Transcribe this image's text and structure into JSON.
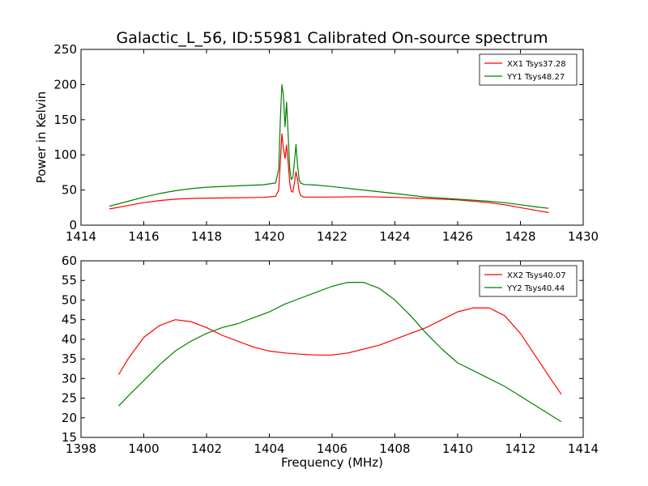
{
  "chart_data": [
    {
      "type": "line",
      "title": "Galactic_L_56, ID:55981 Calibrated On-source spectrum",
      "xlabel": "",
      "ylabel": "Power in Kelvin",
      "xlim": [
        1414,
        1430
      ],
      "ylim": [
        0,
        250
      ],
      "xticks": [
        1414,
        1416,
        1418,
        1420,
        1422,
        1424,
        1426,
        1428,
        1430
      ],
      "yticks": [
        0,
        50,
        100,
        150,
        200,
        250
      ],
      "grid": false,
      "legend": "top-right",
      "series": [
        {
          "name": "XX1 Tsys37.28",
          "color": "#ff0000",
          "x": [
            1414.9,
            1415.5,
            1416.0,
            1416.5,
            1417.0,
            1417.5,
            1418.0,
            1419.0,
            1419.8,
            1420.2,
            1420.3,
            1420.35,
            1420.4,
            1420.45,
            1420.5,
            1420.55,
            1420.6,
            1420.65,
            1420.7,
            1420.75,
            1420.8,
            1420.85,
            1420.9,
            1420.95,
            1421.0,
            1421.1,
            1421.5,
            1422.0,
            1423.0,
            1424.0,
            1425.0,
            1426.0,
            1427.0,
            1427.5,
            1428.0,
            1428.5,
            1428.9
          ],
          "y": [
            23,
            28,
            32,
            35,
            37,
            38,
            38.5,
            39,
            39.5,
            41,
            50,
            90,
            130,
            110,
            95,
            114,
            90,
            60,
            48,
            47,
            60,
            76,
            65,
            48,
            42,
            40,
            40,
            40,
            40.5,
            39.5,
            38,
            36,
            32,
            29,
            25,
            21,
            18
          ]
        },
        {
          "name": "YY1 Tsys48.27",
          "color": "#008000",
          "x": [
            1414.9,
            1415.5,
            1416.0,
            1416.5,
            1417.0,
            1417.5,
            1418.0,
            1419.0,
            1419.8,
            1420.2,
            1420.3,
            1420.35,
            1420.4,
            1420.45,
            1420.5,
            1420.55,
            1420.6,
            1420.65,
            1420.7,
            1420.75,
            1420.8,
            1420.85,
            1420.9,
            1420.95,
            1421.0,
            1421.1,
            1421.5,
            1422.0,
            1423.0,
            1424.0,
            1425.0,
            1426.0,
            1427.0,
            1427.5,
            1428.0,
            1428.5,
            1428.9
          ],
          "y": [
            27,
            34,
            40,
            45,
            49,
            52,
            54,
            56,
            57.5,
            60,
            80,
            150,
            200,
            185,
            140,
            175,
            130,
            80,
            65,
            68,
            90,
            115,
            85,
            65,
            60,
            58,
            57,
            55,
            50,
            45,
            40,
            37,
            34,
            32,
            29,
            26,
            24
          ]
        }
      ]
    },
    {
      "type": "line",
      "title": "",
      "xlabel": "Frequency (MHz)",
      "ylabel": "",
      "xlim": [
        1398,
        1414
      ],
      "ylim": [
        15,
        60
      ],
      "xticks": [
        1398,
        1400,
        1402,
        1404,
        1406,
        1408,
        1410,
        1412,
        1414
      ],
      "yticks": [
        15,
        20,
        25,
        30,
        35,
        40,
        45,
        50,
        55,
        60
      ],
      "grid": false,
      "legend": "top-right",
      "series": [
        {
          "name": "XX2 Tsys40.07",
          "color": "#ff0000",
          "x": [
            1399.2,
            1399.5,
            1400.0,
            1400.5,
            1401.0,
            1401.5,
            1402.0,
            1402.5,
            1403.0,
            1403.5,
            1404.0,
            1404.5,
            1405.0,
            1405.5,
            1406.0,
            1406.5,
            1407.0,
            1407.5,
            1408.0,
            1408.5,
            1409.0,
            1409.5,
            1410.0,
            1410.5,
            1411.0,
            1411.5,
            1412.0,
            1412.5,
            1413.0,
            1413.3
          ],
          "y": [
            31,
            35,
            40.5,
            43.5,
            45,
            44.5,
            43,
            41,
            39.5,
            38,
            37,
            36.5,
            36.2,
            36,
            36,
            36.5,
            37.5,
            38.5,
            40,
            41.5,
            43,
            45,
            47,
            48,
            48,
            46,
            41.5,
            35.5,
            29.5,
            26
          ]
        },
        {
          "name": "YY2 Tsys40.44",
          "color": "#008000",
          "x": [
            1399.2,
            1399.5,
            1400.0,
            1400.5,
            1401.0,
            1401.5,
            1402.0,
            1402.5,
            1403.0,
            1403.5,
            1404.0,
            1404.5,
            1405.0,
            1405.5,
            1406.0,
            1406.5,
            1407.0,
            1407.5,
            1408.0,
            1408.5,
            1409.0,
            1409.5,
            1410.0,
            1410.5,
            1411.0,
            1411.5,
            1412.0,
            1412.5,
            1413.0,
            1413.3
          ],
          "y": [
            23,
            25.5,
            29.5,
            33.5,
            37,
            39.5,
            41.5,
            43,
            44,
            45.5,
            47,
            49,
            50.5,
            52,
            53.5,
            54.5,
            54.5,
            53,
            50,
            46,
            41.5,
            37.5,
            34,
            32,
            30,
            28,
            25.5,
            23,
            20.5,
            19
          ]
        }
      ]
    }
  ]
}
